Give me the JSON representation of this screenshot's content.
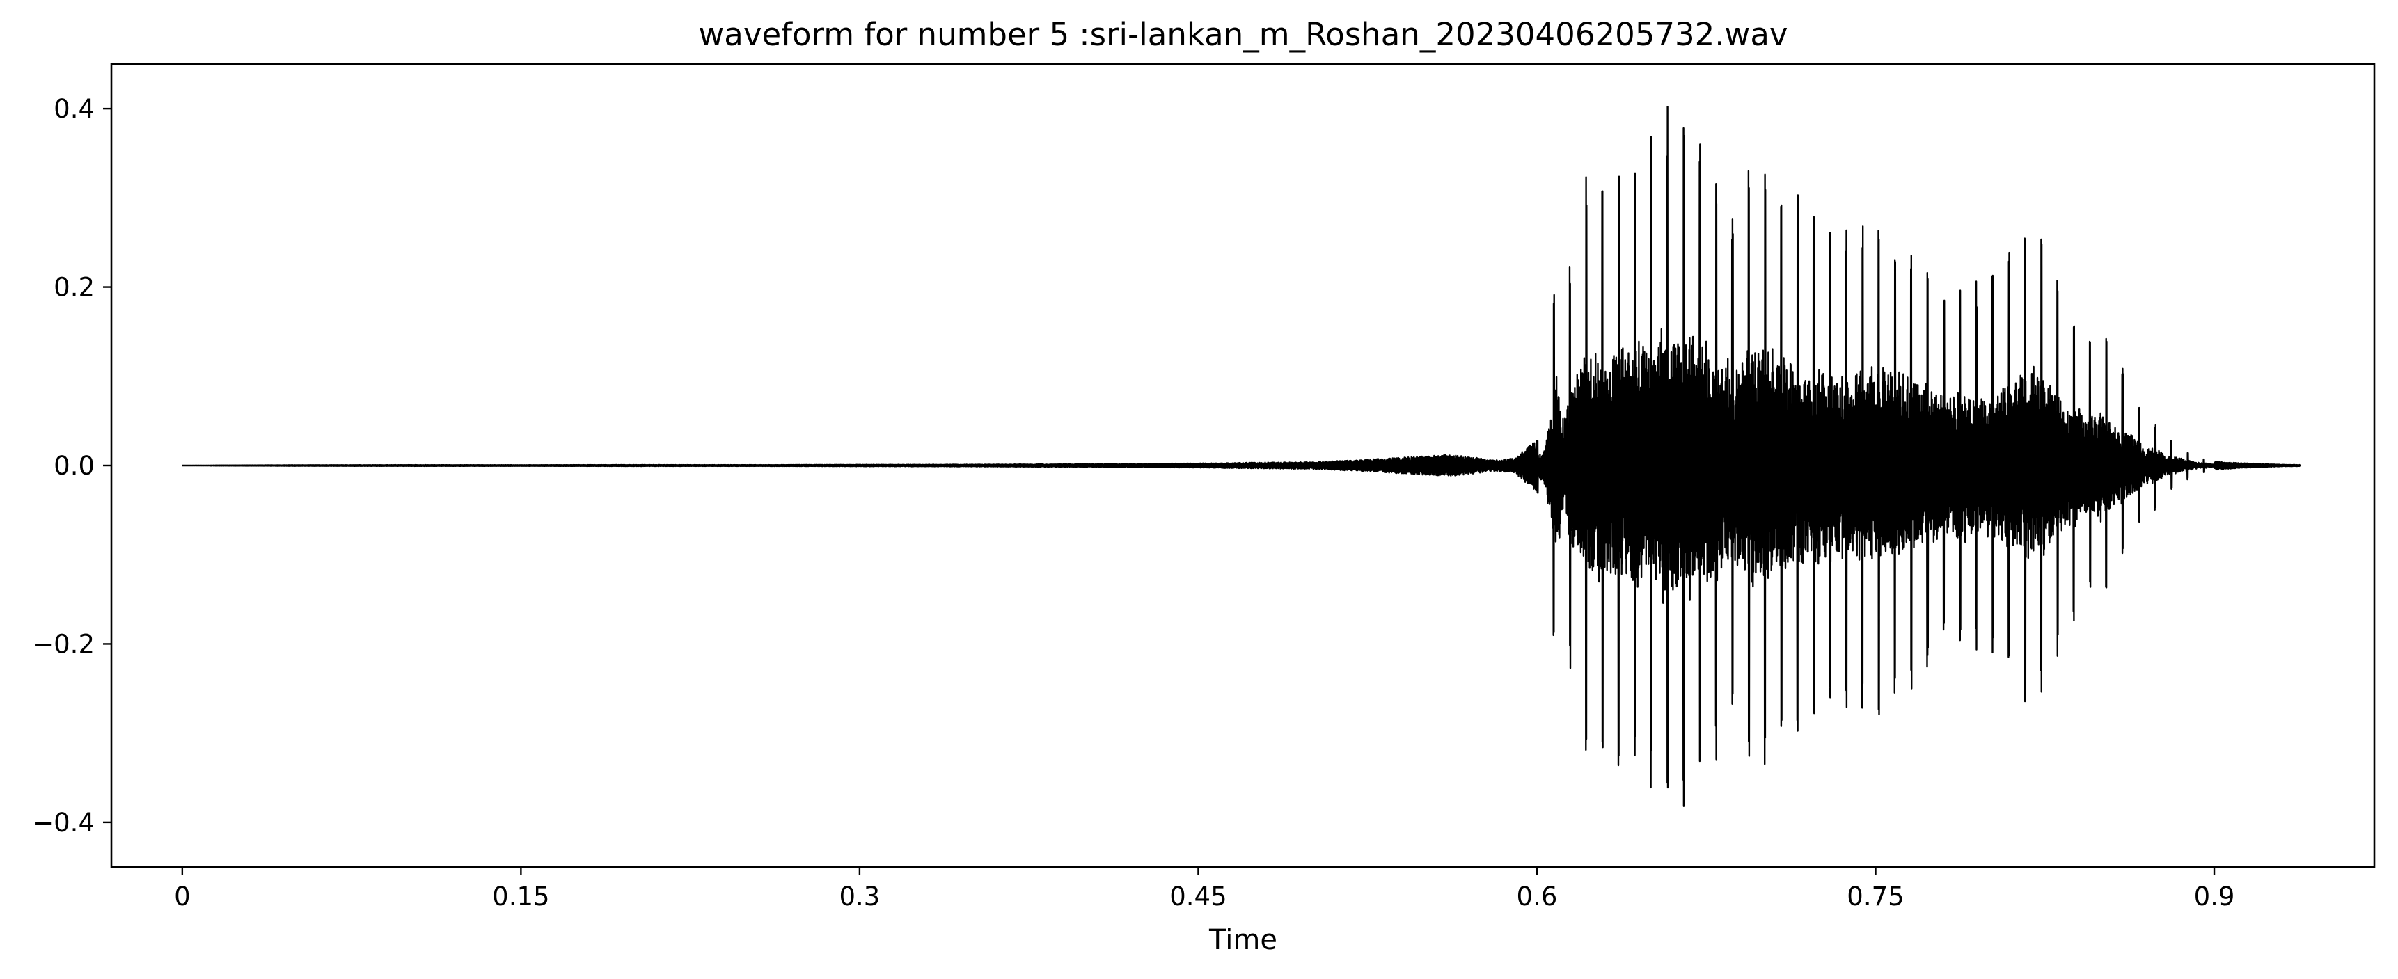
{
  "chart_data": {
    "type": "line",
    "title": "waveform for number 5 :sri-lankan_m_Roshan_20230406205732.wav",
    "xlabel": "Time",
    "ylabel": "",
    "xlim": [
      -0.0314,
      0.9709
    ],
    "ylim": [
      -0.45,
      0.45
    ],
    "x_ticks": [
      0,
      0.15,
      0.3,
      0.45,
      0.6,
      0.75,
      0.9
    ],
    "x_tick_labels": [
      "0",
      "0.15",
      "0.3",
      "0.45",
      "0.6",
      "0.75",
      "0.9"
    ],
    "y_ticks": [
      0.4,
      0.2,
      0.0,
      -0.2,
      -0.4
    ],
    "y_tick_labels": [
      "0.4",
      "0.2",
      "0.0",
      "−0.2",
      "−0.4"
    ],
    "grid": false,
    "line_color": "#000000",
    "series": [
      {
        "x": [
          0.0,
          0.05,
          0.1,
          0.15,
          0.2,
          0.25,
          0.3,
          0.35,
          0.4,
          0.45,
          0.5,
          0.52,
          0.54,
          0.56,
          0.57,
          0.58,
          0.59,
          0.6,
          0.603,
          0.606,
          0.609,
          0.612,
          0.615,
          0.62,
          0.626,
          0.633,
          0.64,
          0.647,
          0.654,
          0.657,
          0.662,
          0.667,
          0.675,
          0.683,
          0.688,
          0.69,
          0.695,
          0.702,
          0.71,
          0.718,
          0.726,
          0.734,
          0.742,
          0.75,
          0.758,
          0.766,
          0.774,
          0.782,
          0.79,
          0.798,
          0.806,
          0.814,
          0.82,
          0.826,
          0.832,
          0.838,
          0.844,
          0.85,
          0.856,
          0.862,
          0.868,
          0.874,
          0.88,
          0.886,
          0.892,
          0.9,
          0.91,
          0.92,
          0.93,
          0.938
        ],
        "amplitude": [
          0.0,
          0.0005,
          0.0007,
          0.0006,
          0.0008,
          0.0007,
          0.001,
          0.0012,
          0.0018,
          0.0025,
          0.004,
          0.006,
          0.009,
          0.012,
          0.01,
          0.006,
          0.008,
          0.03,
          0.05,
          0.15,
          0.27,
          0.12,
          0.25,
          0.32,
          0.34,
          0.35,
          0.35,
          0.36,
          0.38,
          0.41,
          0.37,
          0.4,
          0.35,
          0.32,
          0.28,
          0.3,
          0.35,
          0.34,
          0.32,
          0.3,
          0.28,
          0.27,
          0.28,
          0.29,
          0.27,
          0.25,
          0.23,
          0.2,
          0.22,
          0.2,
          0.23,
          0.26,
          0.28,
          0.26,
          0.2,
          0.18,
          0.15,
          0.17,
          0.12,
          0.1,
          0.06,
          0.05,
          0.03,
          0.02,
          0.01,
          0.005,
          0.003,
          0.002,
          0.001,
          0.0008
        ]
      }
    ]
  }
}
